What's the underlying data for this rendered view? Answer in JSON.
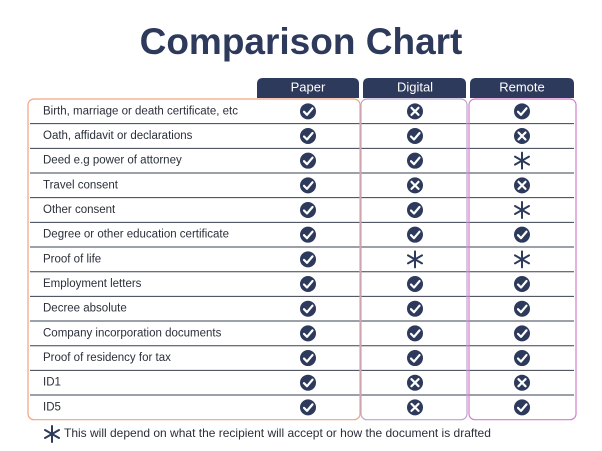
{
  "title": "Comparison Chart",
  "table": {
    "columns": [
      "Paper",
      "Digital",
      "Remote"
    ],
    "rows": [
      "Birth, marriage or death certificate, etc",
      "Oath, affidavit or declarations",
      "Deed e.g power of attorney",
      "Travel consent",
      "Other consent",
      "Degree or other education certificate",
      "Proof of life",
      "Employment letters",
      "Decree absolute",
      "Company incorporation documents",
      "Proof of residency for tax",
      "ID1",
      "ID5"
    ]
  },
  "footnote": "This will depend on what the recipient will accept or how the document is drafted"
}
